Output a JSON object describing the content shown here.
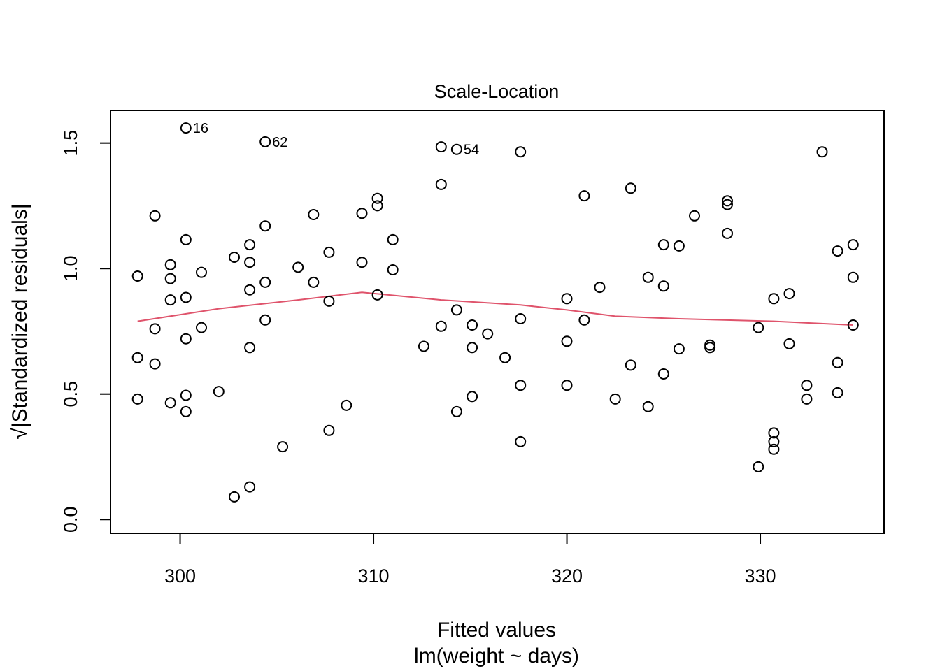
{
  "chart_data": {
    "type": "scatter",
    "title": "Scale-Location",
    "xlabel": "Fitted values",
    "sublabel": "lm(weight ~ days)",
    "ylabel": "√|Standardized residuals|",
    "xlim": [
      296.4,
      336.4
    ],
    "ylim": [
      -0.055,
      1.63
    ],
    "xticks": [
      300,
      310,
      320,
      330
    ],
    "xtick_labels": [
      "300",
      "310",
      "320",
      "330"
    ],
    "yticks": [
      0.0,
      0.5,
      1.0,
      1.5
    ],
    "ytick_labels": [
      "0.0",
      "0.5",
      "1.0",
      "1.5"
    ],
    "grid": false,
    "colors": {
      "points": "#000000",
      "smooth": "#DF536B"
    },
    "points": [
      {
        "x": 297.8,
        "y": 0.97
      },
      {
        "x": 297.8,
        "y": 0.645
      },
      {
        "x": 297.8,
        "y": 0.48
      },
      {
        "x": 298.7,
        "y": 1.21
      },
      {
        "x": 298.7,
        "y": 0.76
      },
      {
        "x": 298.7,
        "y": 0.62
      },
      {
        "x": 299.5,
        "y": 1.015
      },
      {
        "x": 299.5,
        "y": 0.96
      },
      {
        "x": 299.5,
        "y": 0.875
      },
      {
        "x": 299.5,
        "y": 0.465
      },
      {
        "x": 300.3,
        "y": 1.56
      },
      {
        "x": 300.3,
        "y": 1.115
      },
      {
        "x": 300.3,
        "y": 0.885
      },
      {
        "x": 300.3,
        "y": 0.72
      },
      {
        "x": 300.3,
        "y": 0.495
      },
      {
        "x": 300.3,
        "y": 0.43
      },
      {
        "x": 301.1,
        "y": 0.985
      },
      {
        "x": 301.1,
        "y": 0.765
      },
      {
        "x": 302.0,
        "y": 0.51
      },
      {
        "x": 302.8,
        "y": 1.045
      },
      {
        "x": 302.8,
        "y": 0.09
      },
      {
        "x": 303.6,
        "y": 1.095
      },
      {
        "x": 303.6,
        "y": 1.025
      },
      {
        "x": 303.6,
        "y": 0.915
      },
      {
        "x": 303.6,
        "y": 0.685
      },
      {
        "x": 303.6,
        "y": 0.13
      },
      {
        "x": 304.4,
        "y": 1.505
      },
      {
        "x": 304.4,
        "y": 1.17
      },
      {
        "x": 304.4,
        "y": 0.945
      },
      {
        "x": 304.4,
        "y": 0.795
      },
      {
        "x": 305.3,
        "y": 0.29
      },
      {
        "x": 306.1,
        "y": 1.005
      },
      {
        "x": 306.9,
        "y": 1.215
      },
      {
        "x": 306.9,
        "y": 0.945
      },
      {
        "x": 307.7,
        "y": 1.065
      },
      {
        "x": 307.7,
        "y": 0.87
      },
      {
        "x": 307.7,
        "y": 0.355
      },
      {
        "x": 308.6,
        "y": 0.455
      },
      {
        "x": 309.4,
        "y": 1.22
      },
      {
        "x": 309.4,
        "y": 1.025
      },
      {
        "x": 310.2,
        "y": 1.28
      },
      {
        "x": 310.2,
        "y": 1.25
      },
      {
        "x": 310.2,
        "y": 0.895
      },
      {
        "x": 311.0,
        "y": 1.115
      },
      {
        "x": 311.0,
        "y": 0.995
      },
      {
        "x": 312.6,
        "y": 0.69
      },
      {
        "x": 313.5,
        "y": 1.485
      },
      {
        "x": 313.5,
        "y": 1.335
      },
      {
        "x": 313.5,
        "y": 0.77
      },
      {
        "x": 314.3,
        "y": 1.475
      },
      {
        "x": 314.3,
        "y": 0.835
      },
      {
        "x": 314.3,
        "y": 0.43
      },
      {
        "x": 315.1,
        "y": 0.775
      },
      {
        "x": 315.1,
        "y": 0.685
      },
      {
        "x": 315.1,
        "y": 0.49
      },
      {
        "x": 315.9,
        "y": 0.74
      },
      {
        "x": 316.8,
        "y": 0.645
      },
      {
        "x": 317.6,
        "y": 1.465
      },
      {
        "x": 317.6,
        "y": 0.8
      },
      {
        "x": 317.6,
        "y": 0.535
      },
      {
        "x": 317.6,
        "y": 0.31
      },
      {
        "x": 320.0,
        "y": 0.88
      },
      {
        "x": 320.0,
        "y": 0.71
      },
      {
        "x": 320.0,
        "y": 0.535
      },
      {
        "x": 320.9,
        "y": 1.29
      },
      {
        "x": 320.9,
        "y": 0.795
      },
      {
        "x": 321.7,
        "y": 0.925
      },
      {
        "x": 322.5,
        "y": 0.48
      },
      {
        "x": 323.3,
        "y": 1.32
      },
      {
        "x": 323.3,
        "y": 0.615
      },
      {
        "x": 324.2,
        "y": 0.965
      },
      {
        "x": 324.2,
        "y": 0.45
      },
      {
        "x": 325.0,
        "y": 1.095
      },
      {
        "x": 325.0,
        "y": 0.93
      },
      {
        "x": 325.0,
        "y": 0.58
      },
      {
        "x": 325.8,
        "y": 1.09
      },
      {
        "x": 325.8,
        "y": 0.68
      },
      {
        "x": 326.6,
        "y": 1.21
      },
      {
        "x": 327.4,
        "y": 0.695
      },
      {
        "x": 327.4,
        "y": 0.685
      },
      {
        "x": 328.3,
        "y": 1.27
      },
      {
        "x": 328.3,
        "y": 1.255
      },
      {
        "x": 328.3,
        "y": 1.14
      },
      {
        "x": 329.9,
        "y": 0.765
      },
      {
        "x": 329.9,
        "y": 0.21
      },
      {
        "x": 330.7,
        "y": 0.88
      },
      {
        "x": 330.7,
        "y": 0.345
      },
      {
        "x": 330.7,
        "y": 0.31
      },
      {
        "x": 330.7,
        "y": 0.28
      },
      {
        "x": 331.5,
        "y": 0.9
      },
      {
        "x": 331.5,
        "y": 0.7
      },
      {
        "x": 332.4,
        "y": 0.535
      },
      {
        "x": 332.4,
        "y": 0.48
      },
      {
        "x": 333.2,
        "y": 1.465
      },
      {
        "x": 334.0,
        "y": 1.07
      },
      {
        "x": 334.0,
        "y": 0.625
      },
      {
        "x": 334.0,
        "y": 0.505
      },
      {
        "x": 334.8,
        "y": 1.095
      },
      {
        "x": 334.8,
        "y": 0.965
      },
      {
        "x": 334.8,
        "y": 0.775
      }
    ],
    "point_labels": [
      {
        "text": "16",
        "x": 300.3,
        "y": 1.56
      },
      {
        "text": "62",
        "x": 304.4,
        "y": 1.505
      },
      {
        "text": "54",
        "x": 314.3,
        "y": 1.475
      }
    ],
    "smooth_line": [
      {
        "x": 297.8,
        "y": 0.79
      },
      {
        "x": 302.0,
        "y": 0.84
      },
      {
        "x": 306.1,
        "y": 0.875
      },
      {
        "x": 309.4,
        "y": 0.905
      },
      {
        "x": 313.5,
        "y": 0.875
      },
      {
        "x": 317.6,
        "y": 0.855
      },
      {
        "x": 320.0,
        "y": 0.835
      },
      {
        "x": 322.5,
        "y": 0.81
      },
      {
        "x": 325.8,
        "y": 0.8
      },
      {
        "x": 330.7,
        "y": 0.79
      },
      {
        "x": 334.8,
        "y": 0.775
      }
    ]
  }
}
